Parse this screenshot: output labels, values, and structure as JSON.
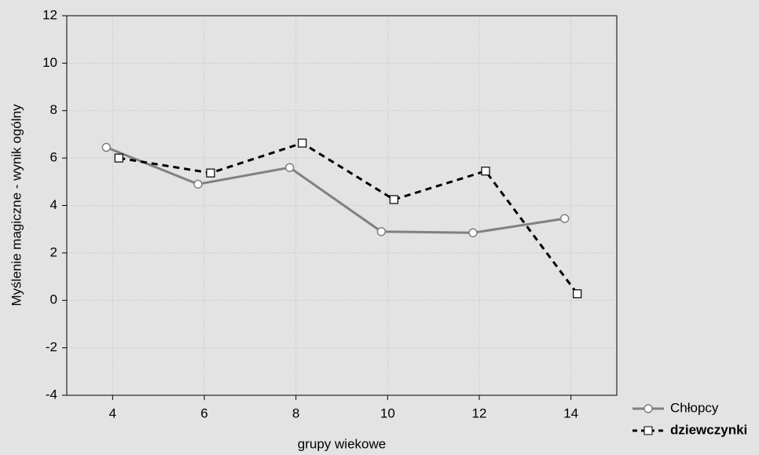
{
  "chart_data": {
    "type": "line",
    "x_label": "grupy wiekowe",
    "y_label": "Myślenie magiczne - wynik ogólny",
    "x": [
      4,
      6,
      8,
      10,
      12,
      14
    ],
    "series": [
      {
        "name": "Chłopcy",
        "color": "#808080",
        "values": [
          6.45,
          4.9,
          5.6,
          2.9,
          2.85,
          3.45
        ]
      },
      {
        "name": "dziewczynki",
        "color": "#000000",
        "values": [
          6.0,
          5.37,
          6.63,
          4.25,
          5.45,
          0.28
        ]
      }
    ],
    "xlim": [
      3,
      15
    ],
    "xticks": [
      4,
      6,
      8,
      10,
      12,
      14
    ],
    "ylim": [
      -4,
      12
    ],
    "yticks": [
      -4,
      -2,
      0,
      2,
      4,
      6,
      8,
      10,
      12
    ],
    "grid": true,
    "legend": "bottom-right"
  }
}
